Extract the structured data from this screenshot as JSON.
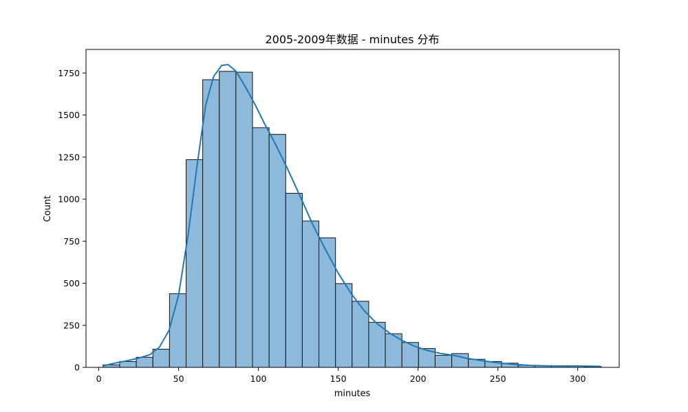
{
  "chart_data": {
    "type": "bar",
    "title": "2005-2009年数据 - minutes 分布",
    "xlabel": "minutes",
    "ylabel": "Count",
    "xlim": [
      -8,
      326
    ],
    "ylim": [
      0,
      1890
    ],
    "xticks": [
      0,
      50,
      100,
      150,
      200,
      250,
      300
    ],
    "yticks": [
      0,
      250,
      500,
      750,
      1000,
      1250,
      1500,
      1750
    ],
    "bin_width": 10.4,
    "bins": [
      {
        "start": 2.7,
        "count": 15
      },
      {
        "start": 13.1,
        "count": 35
      },
      {
        "start": 23.5,
        "count": 60
      },
      {
        "start": 33.9,
        "count": 108
      },
      {
        "start": 44.3,
        "count": 438
      },
      {
        "start": 54.7,
        "count": 1235
      },
      {
        "start": 65.1,
        "count": 1710
      },
      {
        "start": 75.5,
        "count": 1760
      },
      {
        "start": 85.9,
        "count": 1755
      },
      {
        "start": 96.3,
        "count": 1425
      },
      {
        "start": 106.7,
        "count": 1385
      },
      {
        "start": 117.1,
        "count": 1035
      },
      {
        "start": 127.5,
        "count": 870
      },
      {
        "start": 137.9,
        "count": 770
      },
      {
        "start": 148.3,
        "count": 498
      },
      {
        "start": 158.7,
        "count": 393
      },
      {
        "start": 169.1,
        "count": 268
      },
      {
        "start": 179.5,
        "count": 200
      },
      {
        "start": 189.9,
        "count": 148
      },
      {
        "start": 200.3,
        "count": 112
      },
      {
        "start": 210.7,
        "count": 72
      },
      {
        "start": 221.1,
        "count": 82
      },
      {
        "start": 231.5,
        "count": 48
      },
      {
        "start": 241.9,
        "count": 35
      },
      {
        "start": 252.3,
        "count": 25
      },
      {
        "start": 262.7,
        "count": 12
      },
      {
        "start": 273.1,
        "count": 10
      },
      {
        "start": 283.5,
        "count": 10
      },
      {
        "start": 293.9,
        "count": 8
      },
      {
        "start": 304.3,
        "count": 5
      }
    ],
    "kde": {
      "color": "#1f77b4",
      "points": [
        [
          3,
          10
        ],
        [
          10,
          25
        ],
        [
          18,
          40
        ],
        [
          25,
          55
        ],
        [
          32,
          75
        ],
        [
          38,
          120
        ],
        [
          44,
          220
        ],
        [
          50,
          430
        ],
        [
          56,
          790
        ],
        [
          62,
          1230
        ],
        [
          67,
          1560
        ],
        [
          72,
          1730
        ],
        [
          77,
          1795
        ],
        [
          81,
          1800
        ],
        [
          86,
          1760
        ],
        [
          92,
          1665
        ],
        [
          98,
          1560
        ],
        [
          104,
          1445
        ],
        [
          110,
          1340
        ],
        [
          118,
          1185
        ],
        [
          126,
          1020
        ],
        [
          134,
          850
        ],
        [
          142,
          700
        ],
        [
          150,
          560
        ],
        [
          158,
          440
        ],
        [
          166,
          340
        ],
        [
          174,
          262
        ],
        [
          182,
          205
        ],
        [
          190,
          160
        ],
        [
          198,
          125
        ],
        [
          206,
          100
        ],
        [
          214,
          83
        ],
        [
          222,
          72
        ],
        [
          230,
          55
        ],
        [
          240,
          40
        ],
        [
          250,
          27
        ],
        [
          260,
          18
        ],
        [
          270,
          12
        ],
        [
          280,
          9
        ],
        [
          290,
          8
        ],
        [
          300,
          8
        ],
        [
          308,
          7
        ],
        [
          314,
          6
        ]
      ]
    },
    "bar_color": "#8db9da",
    "edge_color": "#111111",
    "grid": false
  }
}
